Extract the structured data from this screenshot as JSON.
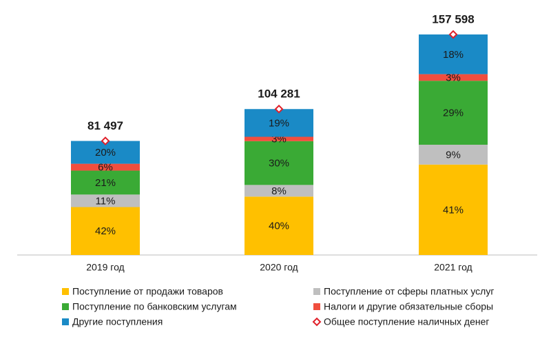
{
  "chart_data": {
    "type": "bar",
    "stacked": true,
    "categories": [
      "2019 год",
      "2020 год",
      "2021 год"
    ],
    "series": [
      {
        "name": "Поступление от продажи товаров",
        "color": "#FFC000",
        "values": [
          42,
          40,
          41
        ],
        "value_labels": [
          "42%",
          "40%",
          "41%"
        ]
      },
      {
        "name": "Поступление от сферы платных услуг",
        "color": "#BFBFBF",
        "values": [
          11,
          8,
          9
        ],
        "value_labels": [
          "11%",
          "8%",
          "9%"
        ]
      },
      {
        "name": "Поступление по банковским услугам",
        "color": "#3AAA35",
        "values": [
          21,
          30,
          29
        ],
        "value_labels": [
          "21%",
          "30%",
          "29%"
        ]
      },
      {
        "name": "Налоги и другие обязательные сборы",
        "color": "#F04E3E",
        "values": [
          6,
          3,
          3
        ],
        "value_labels": [
          "6%",
          "3%",
          "3%"
        ]
      },
      {
        "name": "Другие поступления",
        "color": "#1A8AC6",
        "values": [
          20,
          19,
          18
        ],
        "value_labels": [
          "20%",
          "19%",
          "18%"
        ]
      }
    ],
    "totals": {
      "name": "Общее поступление наличных денег",
      "color": "#E0202A",
      "marker": "diamond",
      "values": [
        81497,
        104281,
        157598
      ],
      "value_labels": [
        "81 497",
        "104 281",
        "157 598"
      ]
    },
    "legend": "bottom"
  }
}
